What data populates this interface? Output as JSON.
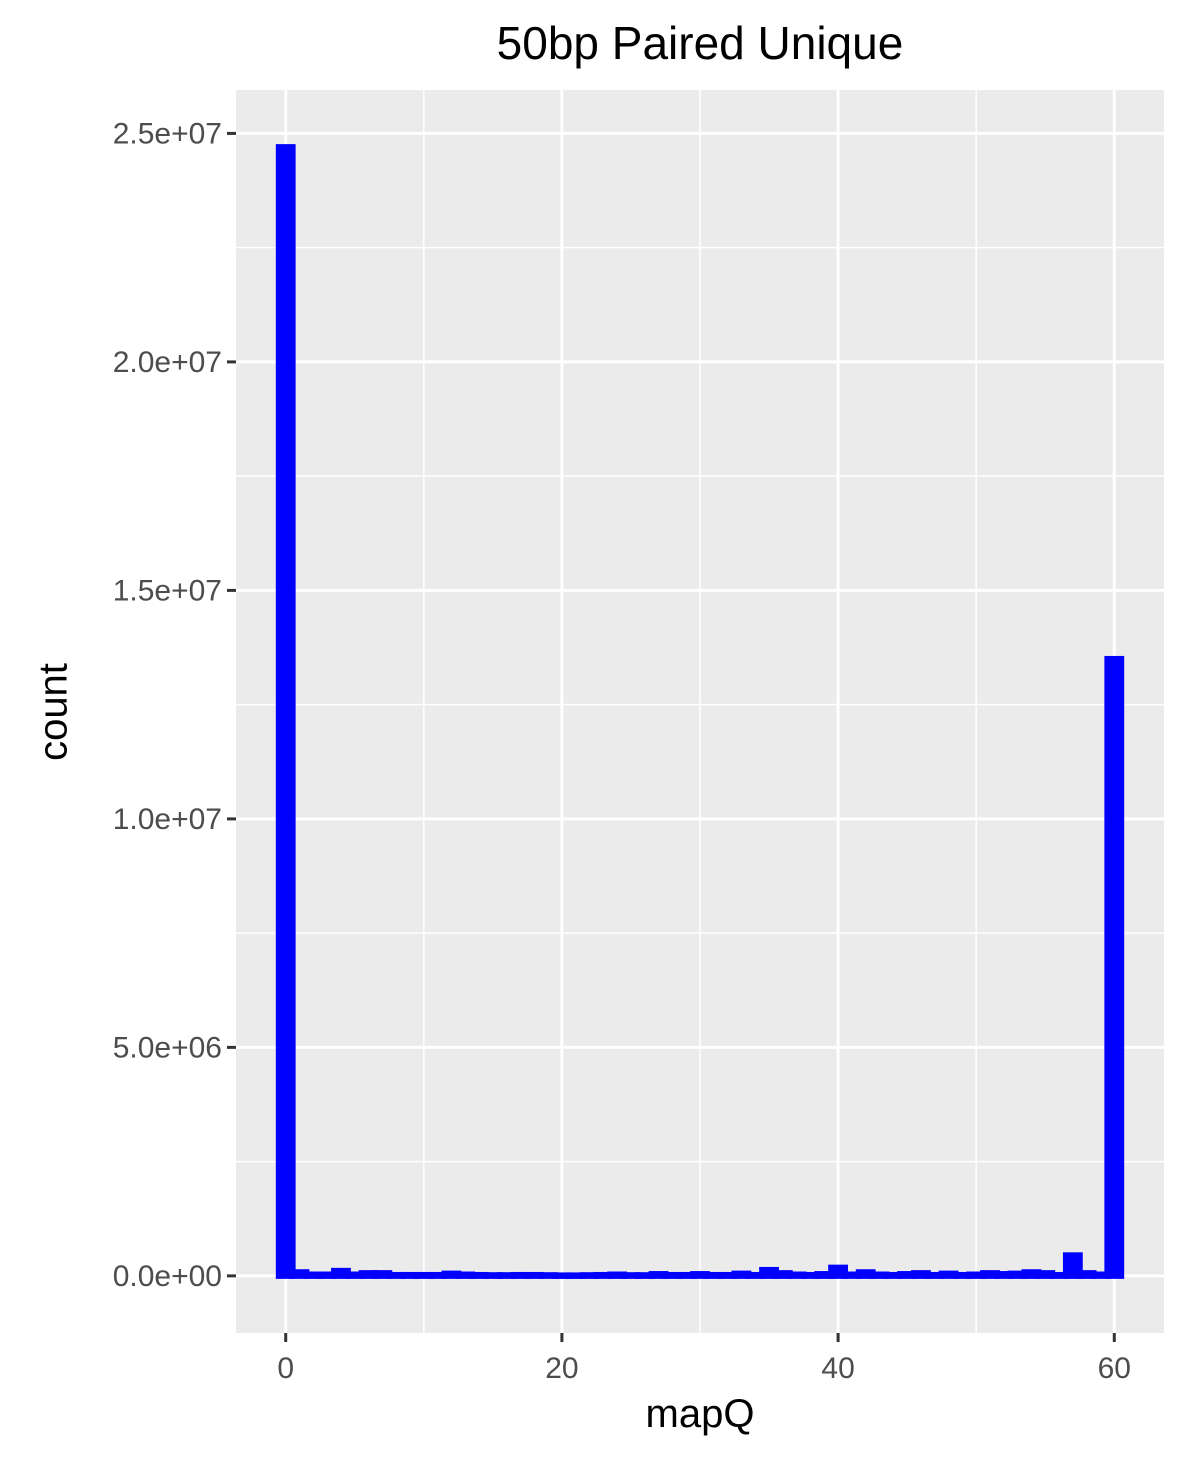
{
  "chart_data": {
    "type": "bar",
    "title": "50bp Paired Unique",
    "xlabel": "mapQ",
    "ylabel": "count",
    "xlim": [
      -3.6,
      63.6
    ],
    "ylim": [
      -1250000,
      25950000
    ],
    "x_ticks": [
      0,
      20,
      40,
      60
    ],
    "x_tick_labels": [
      "0",
      "20",
      "40",
      "60"
    ],
    "y_ticks": [
      0,
      5000000,
      10000000,
      15000000,
      20000000,
      25000000
    ],
    "y_tick_labels": [
      "0.0e+00",
      "5.0e+06",
      "1.0e+07",
      "1.5e+07",
      "2.0e+07",
      "2.5e+07"
    ],
    "bin_width": 1,
    "bar_color": "#0000ff",
    "panel_background": "#ebebeb",
    "grid": true,
    "series": [
      {
        "x": [
          0,
          1,
          2,
          3,
          4,
          5,
          6,
          7,
          8,
          9,
          10,
          11,
          12,
          13,
          14,
          15,
          16,
          17,
          18,
          19,
          20,
          21,
          22,
          23,
          24,
          25,
          26,
          27,
          28,
          29,
          30,
          31,
          32,
          33,
          34,
          35,
          36,
          37,
          38,
          39,
          40,
          41,
          42,
          43,
          44,
          45,
          46,
          47,
          48,
          49,
          50,
          51,
          52,
          53,
          54,
          55,
          56,
          57,
          58,
          59,
          60
        ],
        "values": [
          24700000,
          80000,
          30000,
          30000,
          110000,
          30000,
          60000,
          60000,
          20000,
          20000,
          20000,
          20000,
          50000,
          30000,
          20000,
          15000,
          15000,
          20000,
          20000,
          15000,
          10000,
          10000,
          15000,
          20000,
          30000,
          15000,
          15000,
          40000,
          20000,
          20000,
          40000,
          20000,
          20000,
          50000,
          20000,
          130000,
          60000,
          30000,
          20000,
          40000,
          180000,
          30000,
          80000,
          30000,
          20000,
          40000,
          60000,
          20000,
          50000,
          20000,
          30000,
          60000,
          40000,
          50000,
          80000,
          60000,
          20000,
          450000,
          60000,
          30000,
          13500000
        ]
      }
    ]
  }
}
